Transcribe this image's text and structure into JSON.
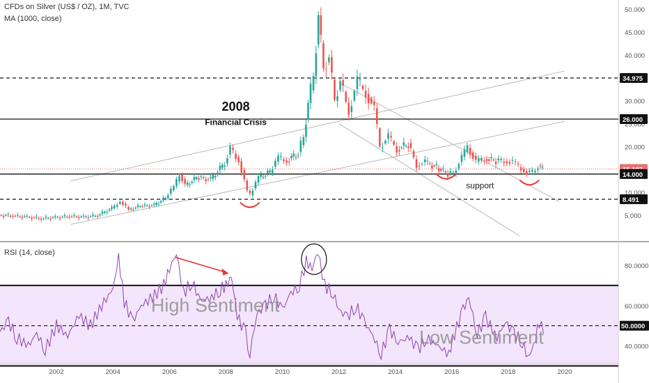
{
  "header": {
    "symbol_line": "CFDs on Silver (US$ / OZ), 1M, TVC",
    "ma_line": "MA (1000, close)",
    "rsi_line": "RSI (14, close)"
  },
  "annotations": {
    "year_title": "2008",
    "crisis_label": "Financial Crisis",
    "support_label": "support",
    "high_sentiment": "High Sentiment",
    "low_sentiment": "Low Sentiment"
  },
  "colors": {
    "up": "#26a69a",
    "down": "#ef5350",
    "rsi_line": "#8e44ad",
    "rsi_band": "#f3e5fb",
    "arrow": "#e53935"
  },
  "price_axis_ticks": [
    "50.000",
    "45.000",
    "40.000",
    "35.000",
    "30.000",
    "25.000",
    "20.000",
    "15.000",
    "10.000",
    "5.000"
  ],
  "price_levels": [
    {
      "value": 34.975,
      "label": "34.975",
      "style": "dashed"
    },
    {
      "value": 26.0,
      "label": "26.000",
      "style": "solid"
    },
    {
      "value": 15.107,
      "label": "15.107",
      "style": "dotted-red"
    },
    {
      "value": 14.0,
      "label": "14.000",
      "style": "solid"
    },
    {
      "value": 8.491,
      "label": "8.491",
      "style": "dashed"
    }
  ],
  "rsi_axis_ticks": [
    "80.0000",
    "60.0000",
    "40.0000"
  ],
  "rsi_levels": [
    {
      "value": 70,
      "style": "solid"
    },
    {
      "value": 50,
      "label": "50.0000",
      "style": "dashed"
    },
    {
      "value": 30,
      "style": "solid"
    }
  ],
  "x_axis_ticks": [
    "2002",
    "2004",
    "2006",
    "2008",
    "2010",
    "2012",
    "2014",
    "2016",
    "2018",
    "2020",
    "202"
  ],
  "chart_data": [
    {
      "type": "candlestick",
      "ylim": [
        0,
        52
      ],
      "xlim": [
        2000.0,
        2021.9
      ],
      "x_ticks": [
        2002,
        2004,
        2006,
        2008,
        2010,
        2012,
        2014,
        2016,
        2018,
        2020
      ],
      "series": [
        {
          "values": [
            [
              2000.0,
              5.0
            ],
            [
              2000.5,
              4.9
            ],
            [
              2001.0,
              4.6
            ],
            [
              2001.5,
              4.3
            ],
            [
              2002.0,
              4.5
            ],
            [
              2002.5,
              4.8
            ],
            [
              2003.0,
              4.6
            ],
            [
              2003.5,
              5.0
            ],
            [
              2004.0,
              6.5
            ],
            [
              2004.3,
              8.0
            ],
            [
              2004.6,
              6.2
            ],
            [
              2005.0,
              7.0
            ],
            [
              2005.5,
              7.2
            ],
            [
              2005.9,
              8.8
            ],
            [
              2006.2,
              11.2
            ],
            [
              2006.4,
              14.0
            ],
            [
              2006.6,
              11.5
            ],
            [
              2007.0,
              13.2
            ],
            [
              2007.5,
              12.8
            ],
            [
              2008.0,
              16.5
            ],
            [
              2008.2,
              19.5
            ],
            [
              2008.5,
              17.0
            ],
            [
              2008.8,
              10.2
            ],
            [
              2008.9,
              9.5
            ],
            [
              2009.2,
              13.2
            ],
            [
              2009.6,
              14.5
            ],
            [
              2009.9,
              17.5
            ],
            [
              2010.2,
              17.0
            ],
            [
              2010.6,
              18.5
            ],
            [
              2010.8,
              22.5
            ],
            [
              2010.95,
              29.0
            ],
            [
              2011.15,
              36.0
            ],
            [
              2011.32,
              48.0
            ],
            [
              2011.5,
              37.5
            ],
            [
              2011.7,
              39.0
            ],
            [
              2011.9,
              30.5
            ],
            [
              2012.1,
              34.0
            ],
            [
              2012.4,
              28.0
            ],
            [
              2012.7,
              34.0
            ],
            [
              2013.0,
              32.0
            ],
            [
              2013.3,
              28.0
            ],
            [
              2013.5,
              20.0
            ],
            [
              2013.8,
              22.0
            ],
            [
              2014.1,
              19.5
            ],
            [
              2014.5,
              20.5
            ],
            [
              2014.8,
              16.0
            ],
            [
              2015.1,
              16.5
            ],
            [
              2015.5,
              15.5
            ],
            [
              2015.9,
              14.0
            ],
            [
              2016.1,
              14.2
            ],
            [
              2016.4,
              17.5
            ],
            [
              2016.6,
              20.0
            ],
            [
              2016.9,
              16.5
            ],
            [
              2017.2,
              17.5
            ],
            [
              2017.6,
              16.8
            ],
            [
              2017.9,
              17.0
            ],
            [
              2018.2,
              16.5
            ],
            [
              2018.5,
              15.3
            ],
            [
              2018.7,
              14.3
            ],
            [
              2018.9,
              14.5
            ],
            [
              2019.1,
              15.6
            ],
            [
              2019.25,
              15.1
            ]
          ]
        }
      ]
    },
    {
      "type": "line",
      "ylim": [
        25,
        90
      ],
      "xlim": [
        2000.0,
        2021.9
      ],
      "series": [
        {
          "name": "RSI",
          "values": [
            [
              2000.0,
              47
            ],
            [
              2000.3,
              52
            ],
            [
              2000.6,
              44
            ],
            [
              2001.0,
              40
            ],
            [
              2001.3,
              46
            ],
            [
              2001.6,
              38
            ],
            [
              2002.0,
              50
            ],
            [
              2002.4,
              45
            ],
            [
              2002.8,
              55
            ],
            [
              2003.2,
              50
            ],
            [
              2003.6,
              60
            ],
            [
              2004.0,
              68
            ],
            [
              2004.2,
              84
            ],
            [
              2004.4,
              62
            ],
            [
              2004.7,
              52
            ],
            [
              2005.0,
              60
            ],
            [
              2005.4,
              64
            ],
            [
              2005.8,
              70
            ],
            [
              2006.0,
              78
            ],
            [
              2006.25,
              86
            ],
            [
              2006.5,
              66
            ],
            [
              2006.8,
              72
            ],
            [
              2007.1,
              62
            ],
            [
              2007.5,
              64
            ],
            [
              2007.8,
              68
            ],
            [
              2008.0,
              70
            ],
            [
              2008.2,
              74
            ],
            [
              2008.4,
              55
            ],
            [
              2008.7,
              46
            ],
            [
              2008.85,
              36
            ],
            [
              2009.1,
              56
            ],
            [
              2009.4,
              60
            ],
            [
              2009.7,
              65
            ],
            [
              2010.0,
              58
            ],
            [
              2010.3,
              66
            ],
            [
              2010.6,
              70
            ],
            [
              2010.85,
              82
            ],
            [
              2011.05,
              78
            ],
            [
              2011.25,
              87
            ],
            [
              2011.5,
              70
            ],
            [
              2011.8,
              66
            ],
            [
              2012.0,
              58
            ],
            [
              2012.3,
              54
            ],
            [
              2012.6,
              60
            ],
            [
              2012.9,
              52
            ],
            [
              2013.2,
              45
            ],
            [
              2013.5,
              36
            ],
            [
              2013.8,
              48
            ],
            [
              2014.1,
              42
            ],
            [
              2014.5,
              44
            ],
            [
              2014.8,
              38
            ],
            [
              2015.1,
              44
            ],
            [
              2015.5,
              40
            ],
            [
              2015.9,
              36
            ],
            [
              2016.1,
              46
            ],
            [
              2016.4,
              58
            ],
            [
              2016.6,
              64
            ],
            [
              2016.9,
              46
            ],
            [
              2017.2,
              54
            ],
            [
              2017.6,
              44
            ],
            [
              2017.9,
              52
            ],
            [
              2018.2,
              46
            ],
            [
              2018.5,
              42
            ],
            [
              2018.7,
              34
            ],
            [
              2018.9,
              40
            ],
            [
              2019.1,
              52
            ],
            [
              2019.25,
              46
            ]
          ]
        }
      ]
    }
  ]
}
